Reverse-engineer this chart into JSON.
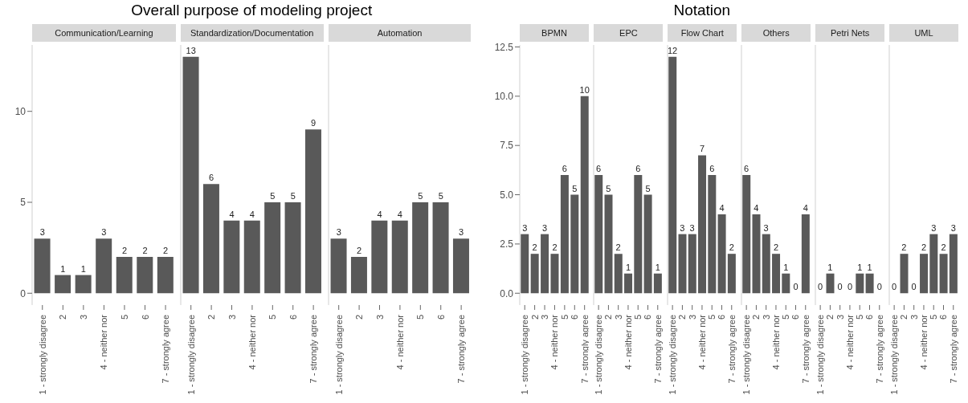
{
  "chart_data": [
    {
      "type": "bar",
      "subtitle": "Communication/Learning",
      "categories": [
        "1 - strongly disagree",
        "2",
        "3",
        "4 - neither nor",
        "5",
        "6",
        "7 - strongly agree"
      ],
      "values": [
        3,
        1,
        1,
        3,
        2,
        2,
        2
      ],
      "color": "#595959",
      "ylim": [
        -0.65,
        13.65
      ],
      "yticks": [
        0,
        5,
        10
      ],
      "data_labels": true
    },
    {
      "type": "bar",
      "title": "Overall purpose of modeling project",
      "subtitle": "Standardization/Documentation",
      "categories": [
        "1 - strongly disagree",
        "2",
        "3",
        "4 - neither nor",
        "5",
        "6",
        "7 - strongly agree"
      ],
      "values": [
        13,
        6,
        4,
        4,
        5,
        5,
        9
      ],
      "color": "#595959",
      "ylim": [
        -0.65,
        13.65
      ],
      "data_labels": true,
      "tick_labels": "x"
    },
    {
      "type": "bar",
      "subtitle": "Automation",
      "categories": [
        "1 - strongly disagree",
        "2",
        "3",
        "4 - neither nor",
        "5",
        "6",
        "7 - strongly agree"
      ],
      "values": [
        3,
        2,
        4,
        4,
        5,
        5,
        3
      ],
      "color": "#595959",
      "ylim": [
        -0.65,
        13.65
      ],
      "data_labels": true,
      "tick_labels": "x"
    },
    {
      "type": "bar",
      "subtitle": "BPMN",
      "categories": [
        "1 - strongly disagree",
        "2",
        "3",
        "4 - neither nor",
        "5",
        "6",
        "7 - strongly agree"
      ],
      "values": [
        3,
        2,
        3,
        2,
        6,
        5,
        10
      ],
      "color": "#595959",
      "ylim": [
        -0.6,
        12.6
      ],
      "yticks": [
        {
          "value": 0,
          "label": "0.0"
        },
        {
          "value": 2.5,
          "label": "2.5"
        },
        {
          "value": 5,
          "label": "5.0"
        },
        {
          "value": 7.5,
          "label": "7.5"
        },
        {
          "value": 10,
          "label": "10.0"
        },
        {
          "value": 12.5,
          "label": "12.5"
        }
      ],
      "data_labels": true
    },
    {
      "type": "bar",
      "subtitle": "EPC",
      "categories": [
        "1 - strongly disagree",
        "2",
        "3",
        "4 - neither nor",
        "5",
        "6",
        "7 - strongly agree"
      ],
      "values": [
        6,
        5,
        2,
        1,
        6,
        5,
        1
      ],
      "color": "#595959",
      "ylim": [
        -0.6,
        12.6
      ],
      "data_labels": true,
      "tick_labels": "x"
    },
    {
      "type": "bar",
      "title": "Notation",
      "subtitle": "Flow Chart",
      "categories": [
        "1 - strongly disagree",
        "2",
        "3",
        "4 - neither nor",
        "5",
        "6",
        "7 - strongly agree"
      ],
      "values": [
        12,
        3,
        3,
        7,
        6,
        4,
        2
      ],
      "color": "#595959",
      "ylim": [
        -0.6,
        12.6
      ],
      "data_labels": true,
      "tick_labels": "x"
    },
    {
      "type": "bar",
      "subtitle": "Others",
      "categories": [
        "1 - strongly disagree",
        "2",
        "3",
        "4 - neither nor",
        "5",
        "6",
        "7 - strongly agree"
      ],
      "values": [
        6,
        4,
        3,
        2,
        1,
        0,
        4
      ],
      "color": "#595959",
      "ylim": [
        -0.6,
        12.6
      ],
      "data_labels": true,
      "tick_labels": "x"
    },
    {
      "type": "bar",
      "subtitle": "Petri Nets",
      "categories": [
        "1 - strongly disagree",
        "2",
        "3",
        "4 - neither nor",
        "5",
        "6",
        "7 - strongly agree"
      ],
      "values": [
        0,
        1,
        0,
        0,
        1,
        1,
        0
      ],
      "color": "#595959",
      "ylim": [
        -0.6,
        12.6
      ],
      "data_labels": true,
      "tick_labels": "x"
    },
    {
      "type": "bar",
      "subtitle": "UML",
      "categories": [
        "1 - strongly disagree",
        "2",
        "3",
        "4 - neither nor",
        "5",
        "6",
        "7 - strongly agree"
      ],
      "values": [
        0,
        2,
        0,
        2,
        3,
        2,
        3
      ],
      "color": "#595959",
      "ylim": [
        -0.6,
        12.6
      ],
      "data_labels": true,
      "tick_labels": "x"
    }
  ]
}
